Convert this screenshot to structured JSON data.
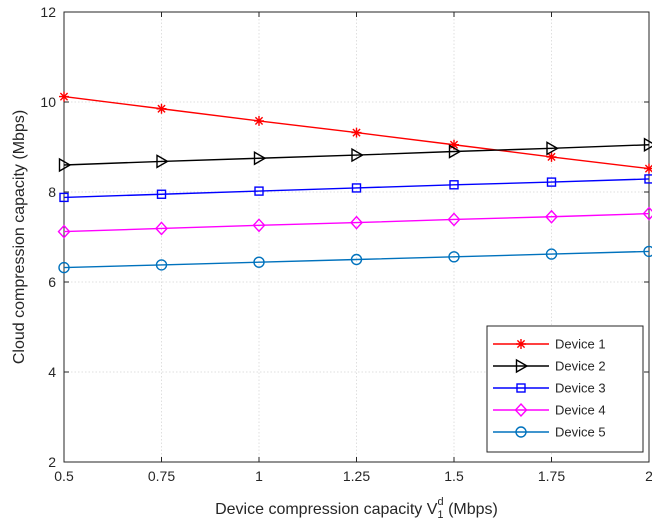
{
  "chart_data": {
    "type": "line",
    "title": "",
    "xlabel": "Device compression capacity V",
    "xlabel_sub": "1",
    "xlabel_sup": "d",
    "xlabel_unit": " (Mbps)",
    "ylabel": "Cloud compression capacity (Mbps)",
    "x": [
      0.5,
      0.75,
      1,
      1.25,
      1.5,
      1.75,
      2
    ],
    "xticks": [
      "0.5",
      "0.75",
      "1",
      "1.25",
      "1.5",
      "1.75",
      "2"
    ],
    "yticks": [
      "2",
      "4",
      "6",
      "8",
      "10",
      "12"
    ],
    "xlim": [
      0.5,
      2
    ],
    "ylim": [
      2,
      12
    ],
    "grid": true,
    "legend_position": "bottom-right",
    "series": [
      {
        "name": "Device 1",
        "color": "#ff0000",
        "marker": "asterisk",
        "values": [
          10.12,
          9.85,
          9.58,
          9.32,
          9.05,
          8.78,
          8.52
        ]
      },
      {
        "name": "Device 2",
        "color": "#000000",
        "marker": "triangle-right",
        "values": [
          8.6,
          8.68,
          8.75,
          8.82,
          8.9,
          8.97,
          9.05
        ]
      },
      {
        "name": "Device 3",
        "color": "#0000ff",
        "marker": "square",
        "values": [
          7.88,
          7.95,
          8.02,
          8.09,
          8.16,
          8.22,
          8.29
        ]
      },
      {
        "name": "Device 4",
        "color": "#ff00ff",
        "marker": "diamond",
        "values": [
          7.12,
          7.19,
          7.26,
          7.32,
          7.39,
          7.45,
          7.52
        ]
      },
      {
        "name": "Device 5",
        "color": "#0072bd",
        "marker": "circle",
        "values": [
          6.32,
          6.38,
          6.44,
          6.5,
          6.56,
          6.62,
          6.68
        ]
      }
    ]
  }
}
